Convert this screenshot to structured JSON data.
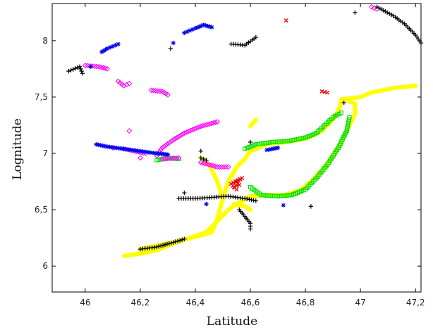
{
  "chart_data": {
    "type": "scatter",
    "title": "",
    "xlabel": "Latitude",
    "ylabel": "Lognitude",
    "xlim": [
      45.88,
      47.22
    ],
    "ylim": [
      5.77,
      8.33
    ],
    "xticks": [
      46,
      46.2,
      46.4,
      46.6,
      46.8,
      47,
      47.2
    ],
    "xtick_labels": [
      "46",
      "46,2",
      "46,4",
      "46,6",
      "46,8",
      "47",
      "47,2"
    ],
    "yticks": [
      6,
      6.5,
      7,
      7.5,
      8
    ],
    "ytick_labels": [
      "6",
      "6,5",
      "7",
      "7,5",
      "8"
    ],
    "grid": false,
    "legend": "none",
    "series": [
      {
        "color": "#ffff00",
        "marker": "filled-dot",
        "segments": [
          [
            [
              46.14,
              6.09
            ],
            [
              46.2,
              6.11
            ],
            [
              46.26,
              6.14
            ],
            [
              46.32,
              6.2
            ],
            [
              46.38,
              6.25
            ],
            [
              46.44,
              6.3
            ],
            [
              46.48,
              6.4
            ],
            [
              46.52,
              6.5
            ],
            [
              46.55,
              6.55
            ],
            [
              46.6,
              6.62
            ],
            [
              46.66,
              6.63
            ],
            [
              46.72,
              6.63
            ],
            [
              46.78,
              6.67
            ],
            [
              46.82,
              6.75
            ],
            [
              46.86,
              6.85
            ],
            [
              46.9,
              6.98
            ],
            [
              46.93,
              7.1
            ],
            [
              46.96,
              7.25
            ],
            [
              46.98,
              7.35
            ],
            [
              46.98,
              7.44
            ],
            [
              46.96,
              7.46
            ]
          ],
          [
            [
              46.2,
              6.15
            ],
            [
              46.3,
              6.2
            ],
            [
              46.4,
              6.26
            ],
            [
              46.46,
              6.3
            ],
            [
              46.48,
              6.42
            ],
            [
              46.5,
              6.6
            ],
            [
              46.48,
              6.75
            ],
            [
              46.45,
              6.9
            ],
            [
              46.42,
              6.96
            ]
          ],
          [
            [
              46.5,
              6.6
            ],
            [
              46.52,
              6.75
            ],
            [
              46.55,
              6.88
            ],
            [
              46.58,
              6.95
            ],
            [
              46.6,
              7.02
            ],
            [
              46.66,
              7.08
            ],
            [
              46.72,
              7.1
            ],
            [
              46.78,
              7.12
            ],
            [
              46.82,
              7.15
            ],
            [
              46.86,
              7.2
            ],
            [
              46.9,
              7.3
            ],
            [
              46.92,
              7.38
            ],
            [
              46.93,
              7.46
            ]
          ],
          [
            [
              46.54,
              6.55
            ],
            [
              46.58,
              6.53
            ],
            [
              46.6,
              6.5
            ]
          ],
          [
            [
              46.93,
              7.48
            ],
            [
              46.97,
              7.49
            ],
            [
              47.0,
              7.5
            ],
            [
              47.04,
              7.54
            ],
            [
              47.08,
              7.56
            ],
            [
              47.12,
              7.58
            ],
            [
              47.16,
              7.59
            ],
            [
              47.2,
              7.6
            ]
          ],
          [
            [
              46.6,
              7.24
            ],
            [
              46.62,
              7.3
            ]
          ]
        ]
      },
      {
        "color": "#00e000",
        "marker": "square",
        "segments": [
          [
            [
              46.58,
              7.04
            ],
            [
              46.62,
              7.08
            ],
            [
              46.68,
              7.1
            ],
            [
              46.74,
              7.11
            ],
            [
              46.8,
              7.14
            ],
            [
              46.84,
              7.18
            ],
            [
              46.87,
              7.25
            ],
            [
              46.9,
              7.32
            ],
            [
              46.93,
              7.36
            ]
          ],
          [
            [
              46.6,
              6.7
            ],
            [
              46.64,
              6.63
            ],
            [
              46.7,
              6.62
            ],
            [
              46.75,
              6.63
            ],
            [
              46.8,
              6.68
            ],
            [
              46.84,
              6.78
            ],
            [
              46.88,
              6.9
            ],
            [
              46.92,
              7.05
            ],
            [
              46.95,
              7.2
            ],
            [
              46.96,
              7.32
            ]
          ],
          [
            [
              46.26,
              6.94
            ],
            [
              46.3,
              6.96
            ],
            [
              46.34,
              6.95
            ]
          ]
        ]
      },
      {
        "color": "#000000",
        "marker": "plus",
        "segments": [
          [
            [
              46.2,
              6.15
            ],
            [
              46.26,
              6.17
            ],
            [
              46.32,
              6.21
            ],
            [
              46.36,
              6.24
            ]
          ],
          [
            [
              46.34,
              6.6
            ],
            [
              46.4,
              6.6
            ],
            [
              46.46,
              6.61
            ],
            [
              46.52,
              6.62
            ],
            [
              46.58,
              6.6
            ],
            [
              46.62,
              6.58
            ]
          ],
          [
            [
              46.56,
              6.5
            ],
            [
              46.58,
              6.44
            ],
            [
              46.6,
              6.38
            ],
            [
              46.6,
              6.33
            ]
          ],
          [
            [
              46.42,
              6.96
            ],
            [
              46.44,
              6.94
            ]
          ],
          [
            [
              47.06,
              8.3
            ],
            [
              47.12,
              8.22
            ],
            [
              47.16,
              8.15
            ],
            [
              47.2,
              8.05
            ],
            [
              47.22,
              7.98
            ]
          ],
          [
            [
              45.94,
              7.73
            ],
            [
              45.98,
              7.77
            ],
            [
              45.99,
              7.71
            ],
            [
              46.31,
              7.93
            ],
            [
              46.53,
              7.97
            ],
            [
              46.58,
              7.96
            ],
            [
              46.62,
              8.03
            ],
            [
              46.98,
              8.25
            ],
            [
              46.94,
              7.45
            ],
            [
              46.82,
              6.53
            ],
            [
              46.36,
              6.65
            ],
            [
              46.42,
              7.02
            ],
            [
              46.6,
              7.1
            ]
          ]
        ]
      },
      {
        "color": "#0000ee",
        "marker": "asterisk",
        "segments": [
          [
            [
              46.06,
              7.9
            ],
            [
              46.08,
              7.93
            ],
            [
              46.1,
              7.95
            ],
            [
              46.12,
              7.97
            ]
          ],
          [
            [
              46.36,
              8.07
            ],
            [
              46.38,
              8.09
            ],
            [
              46.4,
              8.11
            ],
            [
              46.43,
              8.14
            ],
            [
              46.46,
              8.12
            ]
          ],
          [
            [
              46.04,
              7.08
            ],
            [
              46.08,
              7.06
            ],
            [
              46.14,
              7.04
            ],
            [
              46.2,
              7.02
            ],
            [
              46.26,
              7.0
            ],
            [
              46.3,
              6.99
            ]
          ],
          [
            [
              46.66,
              7.03
            ],
            [
              46.7,
              7.05
            ]
          ],
          [
            [
              46.32,
              7.98
            ],
            [
              46.44,
              6.55
            ],
            [
              46.72,
              6.54
            ],
            [
              46.02,
              7.77
            ]
          ]
        ]
      },
      {
        "color": "#ff00ff",
        "marker": "diamond",
        "segments": [
          [
            [
              46.12,
              7.64
            ],
            [
              46.14,
              7.6
            ],
            [
              46.16,
              7.62
            ]
          ],
          [
            [
              46.24,
              7.56
            ],
            [
              46.28,
              7.55
            ],
            [
              46.3,
              7.52
            ]
          ],
          [
            [
              46.26,
              6.98
            ],
            [
              46.28,
              7.05
            ],
            [
              46.32,
              7.12
            ],
            [
              46.36,
              7.18
            ],
            [
              46.42,
              7.24
            ],
            [
              46.48,
              7.28
            ]
          ],
          [
            [
              46.2,
              6.96
            ],
            [
              46.28,
              6.95
            ],
            [
              46.34,
              6.96
            ],
            [
              46.42,
              6.92
            ],
            [
              46.48,
              6.88
            ],
            [
              46.52,
              6.88
            ]
          ],
          [
            [
              46.14,
              7.04
            ],
            [
              46.18,
              7.02
            ],
            [
              46.22,
              7.0
            ]
          ],
          [
            [
              46.0,
              7.78
            ],
            [
              46.05,
              7.77
            ],
            [
              46.08,
              7.75
            ],
            [
              46.16,
              7.2
            ],
            [
              46.1,
              7.05
            ]
          ],
          [
            [
              47.04,
              8.3
            ],
            [
              47.06,
              8.28
            ]
          ]
        ]
      },
      {
        "color": "#ee0000",
        "marker": "x",
        "segments": [
          [
            [
              46.54,
              6.7
            ],
            [
              46.56,
              6.72
            ],
            [
              46.55,
              6.75
            ],
            [
              46.57,
              6.78
            ],
            [
              46.53,
              6.73
            ],
            [
              46.55,
              6.68
            ]
          ],
          [
            [
              46.73,
              8.18
            ],
            [
              46.86,
              7.55
            ],
            [
              46.88,
              7.54
            ]
          ]
        ]
      }
    ]
  }
}
